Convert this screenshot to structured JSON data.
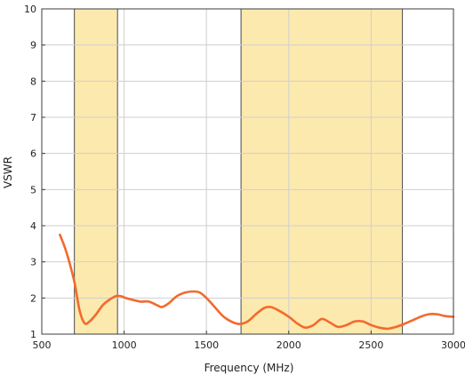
{
  "chart_data": {
    "type": "line",
    "title": "",
    "xlabel": "Frequency (MHz)",
    "ylabel": "VSWR",
    "xlim": [
      500,
      3000
    ],
    "ylim": [
      1,
      10
    ],
    "xticks": [
      500,
      1000,
      1500,
      2000,
      2500,
      3000
    ],
    "yticks": [
      1,
      2,
      3,
      4,
      5,
      6,
      7,
      8,
      9,
      10
    ],
    "grid": true,
    "legend": "none",
    "highlight_bands": [
      {
        "x_start": 698,
        "x_end": 960,
        "color": "#fce9ad"
      },
      {
        "x_start": 1710,
        "x_end": 2690,
        "color": "#fce9ad"
      }
    ],
    "series": [
      {
        "color": "#f26a2d",
        "x": [
          610,
          640,
          670,
          700,
          730,
          760,
          790,
          830,
          870,
          910,
          950,
          980,
          1010,
          1050,
          1100,
          1150,
          1200,
          1230,
          1270,
          1320,
          1370,
          1420,
          1460,
          1500,
          1550,
          1600,
          1650,
          1700,
          1750,
          1800,
          1850,
          1890,
          1940,
          2000,
          2050,
          2100,
          2150,
          2200,
          2250,
          2300,
          2350,
          2400,
          2450,
          2500,
          2550,
          2600,
          2650,
          2700,
          2750,
          2800,
          2850,
          2900,
          2950,
          3000
        ],
        "y": [
          3.75,
          3.4,
          2.95,
          2.4,
          1.65,
          1.3,
          1.35,
          1.55,
          1.8,
          1.95,
          2.05,
          2.05,
          2.0,
          1.95,
          1.9,
          1.9,
          1.8,
          1.75,
          1.85,
          2.05,
          2.15,
          2.18,
          2.15,
          2.0,
          1.75,
          1.5,
          1.35,
          1.28,
          1.35,
          1.55,
          1.72,
          1.75,
          1.65,
          1.48,
          1.3,
          1.18,
          1.25,
          1.42,
          1.32,
          1.2,
          1.25,
          1.35,
          1.35,
          1.25,
          1.18,
          1.15,
          1.2,
          1.28,
          1.38,
          1.48,
          1.55,
          1.55,
          1.5,
          1.48
        ]
      }
    ]
  }
}
